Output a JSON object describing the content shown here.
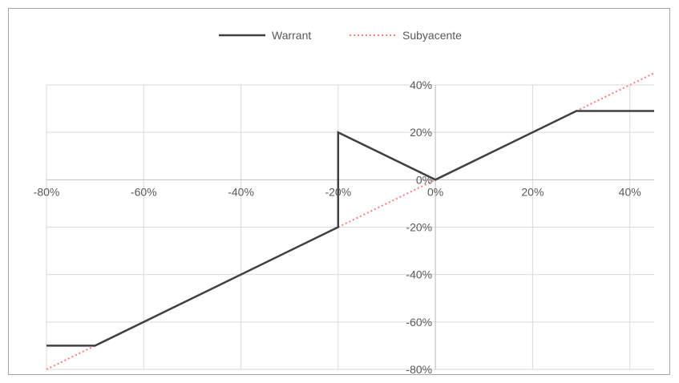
{
  "chart_data": {
    "type": "line",
    "title": "",
    "xlabel": "",
    "ylabel": "",
    "xlim": [
      -0.8,
      0.45
    ],
    "ylim": [
      -0.8,
      0.4
    ],
    "x_ticks": [
      -0.8,
      -0.6,
      -0.4,
      -0.2,
      0.0,
      0.2,
      0.4
    ],
    "x_tick_labels": [
      "-80%",
      "-60%",
      "-40%",
      "-20%",
      "0%",
      "20%",
      "40%"
    ],
    "y_ticks": [
      0.4,
      0.2,
      0.0,
      -0.2,
      -0.4,
      -0.6,
      -0.8
    ],
    "y_tick_labels": [
      "40%",
      "20%",
      "0%",
      "-20%",
      "-40%",
      "-60%",
      "-80%"
    ],
    "grid": true,
    "legend_position": "top",
    "series": [
      {
        "name": "Warrant",
        "color": "#404040",
        "style": "solid",
        "x": [
          -0.8,
          -0.7,
          -0.2,
          -0.2,
          0.0,
          0.29,
          0.45
        ],
        "y": [
          -0.7,
          -0.7,
          -0.2,
          0.2,
          0.0,
          0.29,
          0.29
        ]
      },
      {
        "name": "Subyacente",
        "color": "#ff7c80",
        "style": "dotted",
        "x": [
          -0.8,
          0.45
        ],
        "y": [
          -0.8,
          0.45
        ]
      }
    ]
  }
}
